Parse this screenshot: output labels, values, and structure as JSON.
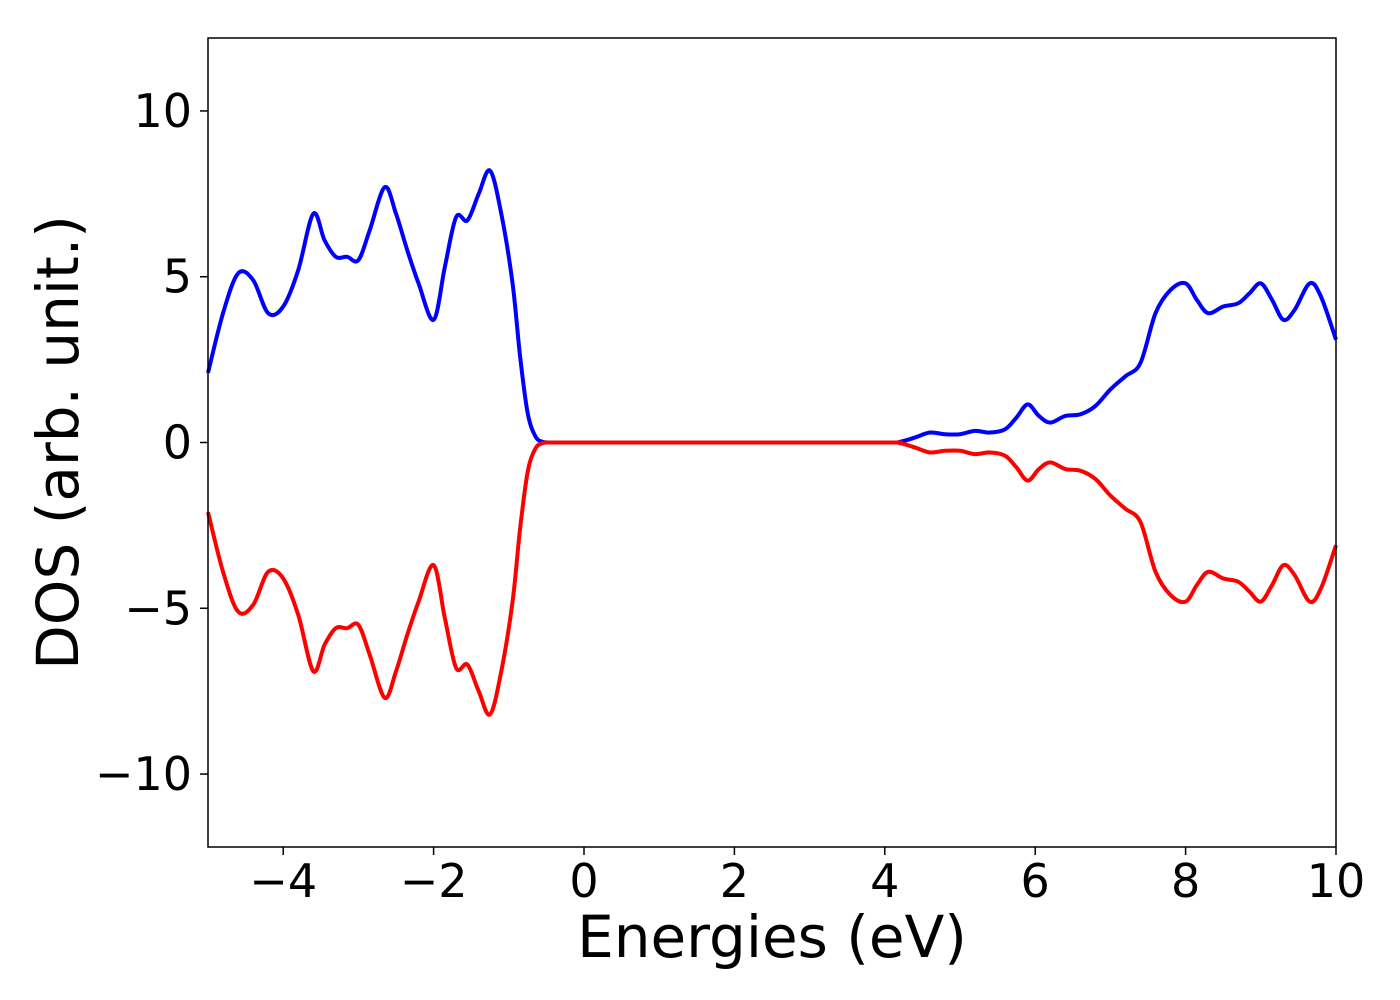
{
  "chart_data": {
    "type": "line",
    "title": "",
    "xlabel": "Energies (eV)",
    "ylabel": "DOS (arb. unit.)",
    "xlim": [
      -5,
      10
    ],
    "ylim": [
      -12.2,
      12.2
    ],
    "xticks": [
      -4,
      -2,
      0,
      2,
      4,
      6,
      8,
      10
    ],
    "xtick_labels": [
      "−4",
      "−2",
      "0",
      "2",
      "4",
      "6",
      "8",
      "10"
    ],
    "yticks": [
      10,
      5,
      0,
      -5,
      -10
    ],
    "ytick_labels": [
      "10",
      "5",
      "0",
      "−5",
      "−10"
    ],
    "grid": false,
    "series": [
      {
        "color": "#0000ff",
        "x": [
          -5.0,
          -4.8,
          -4.6,
          -4.4,
          -4.2,
          -4.0,
          -3.8,
          -3.6,
          -3.45,
          -3.3,
          -3.15,
          -3.0,
          -2.85,
          -2.65,
          -2.5,
          -2.35,
          -2.2,
          -2.0,
          -1.85,
          -1.7,
          -1.55,
          -1.4,
          -1.25,
          -1.1,
          -0.95,
          -0.85,
          -0.75,
          -0.65,
          -0.55,
          -0.4,
          0.0,
          2.0,
          4.0,
          4.2,
          4.4,
          4.6,
          4.8,
          5.0,
          5.2,
          5.4,
          5.6,
          5.75,
          5.9,
          6.05,
          6.2,
          6.4,
          6.6,
          6.8,
          7.0,
          7.2,
          7.4,
          7.6,
          7.8,
          8.0,
          8.15,
          8.3,
          8.5,
          8.7,
          8.85,
          9.0,
          9.15,
          9.3,
          9.45,
          9.65,
          9.8,
          10.0
        ],
        "y": [
          2.1,
          3.9,
          5.1,
          4.9,
          3.9,
          4.1,
          5.2,
          6.9,
          6.1,
          5.6,
          5.6,
          5.5,
          6.4,
          7.7,
          6.9,
          5.8,
          4.8,
          3.7,
          5.3,
          6.8,
          6.7,
          7.5,
          8.2,
          6.9,
          4.8,
          2.6,
          0.9,
          0.2,
          0.02,
          0.0,
          0.0,
          0.0,
          0.0,
          0.02,
          0.15,
          0.3,
          0.25,
          0.25,
          0.35,
          0.3,
          0.4,
          0.75,
          1.15,
          0.8,
          0.6,
          0.8,
          0.85,
          1.1,
          1.6,
          2.0,
          2.4,
          3.9,
          4.6,
          4.8,
          4.3,
          3.9,
          4.1,
          4.2,
          4.5,
          4.8,
          4.3,
          3.7,
          4.0,
          4.8,
          4.4,
          3.1
        ]
      },
      {
        "color": "#ff0000",
        "x": [
          -5.0,
          -4.8,
          -4.6,
          -4.4,
          -4.2,
          -4.0,
          -3.8,
          -3.6,
          -3.45,
          -3.3,
          -3.15,
          -3.0,
          -2.85,
          -2.65,
          -2.5,
          -2.35,
          -2.2,
          -2.0,
          -1.85,
          -1.7,
          -1.55,
          -1.4,
          -1.25,
          -1.1,
          -0.95,
          -0.85,
          -0.75,
          -0.65,
          -0.55,
          -0.4,
          0.0,
          2.0,
          4.0,
          4.2,
          4.4,
          4.6,
          4.8,
          5.0,
          5.2,
          5.4,
          5.6,
          5.75,
          5.9,
          6.05,
          6.2,
          6.4,
          6.6,
          6.8,
          7.0,
          7.2,
          7.4,
          7.6,
          7.8,
          8.0,
          8.15,
          8.3,
          8.5,
          8.7,
          8.85,
          9.0,
          9.15,
          9.3,
          9.45,
          9.65,
          9.8,
          10.0
        ],
        "y": [
          -2.1,
          -3.9,
          -5.1,
          -4.9,
          -3.9,
          -4.1,
          -5.2,
          -6.9,
          -6.1,
          -5.6,
          -5.6,
          -5.5,
          -6.4,
          -7.7,
          -6.9,
          -5.8,
          -4.8,
          -3.7,
          -5.3,
          -6.8,
          -6.7,
          -7.5,
          -8.2,
          -6.9,
          -4.8,
          -2.6,
          -0.9,
          -0.2,
          -0.02,
          0.0,
          0.0,
          0.0,
          0.0,
          -0.02,
          -0.15,
          -0.3,
          -0.25,
          -0.25,
          -0.35,
          -0.3,
          -0.4,
          -0.75,
          -1.15,
          -0.8,
          -0.6,
          -0.8,
          -0.85,
          -1.1,
          -1.6,
          -2.0,
          -2.4,
          -3.9,
          -4.6,
          -4.8,
          -4.3,
          -3.9,
          -4.1,
          -4.2,
          -4.5,
          -4.8,
          -4.3,
          -3.7,
          -4.0,
          -4.8,
          -4.4,
          -3.1
        ]
      }
    ]
  }
}
